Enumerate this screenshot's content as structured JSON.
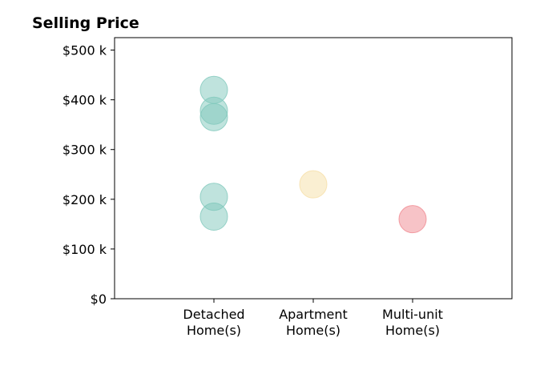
{
  "chart_data": {
    "type": "scatter",
    "title": "Selling Price",
    "xlabel": "",
    "ylabel": "",
    "categories": [
      [
        "Detached",
        "Home(s)"
      ],
      [
        "Apartment",
        "Home(s)"
      ],
      [
        "Multi-unit",
        "Home(s)"
      ]
    ],
    "xlim": [
      -1,
      3
    ],
    "ylim": [
      0,
      500000
    ],
    "yticks": [
      0,
      100000,
      200000,
      300000,
      400000,
      500000
    ],
    "ytick_labels": [
      "$0",
      "$100 k",
      "$200 k",
      "$300 k",
      "$400 k",
      "$500 k"
    ],
    "grid": false,
    "points": [
      {
        "category": 0,
        "value": 420000,
        "color": "#7fc8bc"
      },
      {
        "category": 0,
        "value": 378000,
        "color": "#7fc8bc"
      },
      {
        "category": 0,
        "value": 365000,
        "color": "#7fc8bc"
      },
      {
        "category": 0,
        "value": 205000,
        "color": "#7fc8bc"
      },
      {
        "category": 0,
        "value": 165000,
        "color": "#7fc8bc"
      },
      {
        "category": 1,
        "value": 230000,
        "color": "#f6dfa6"
      },
      {
        "category": 2,
        "value": 160000,
        "color": "#f08890"
      }
    ],
    "point_opacity": 0.5
  }
}
